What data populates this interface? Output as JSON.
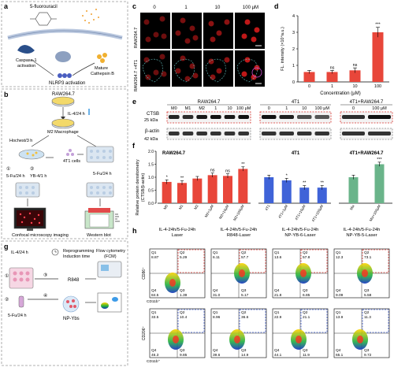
{
  "panels": {
    "a": {
      "letter": "a",
      "drug_label": "5-fluorouracil",
      "caspase_label_1": "Caspase-1",
      "caspase_label_2": "activation",
      "cathepsin_label_1": "Mature",
      "cathepsin_label_2": "Cathepsin B",
      "nlrp3_label": "NLRP3 activation"
    },
    "b": {
      "letter": "b",
      "cell_line": "RAW264.7",
      "il4_label": "IL-4/24 h",
      "m2_label": "M2 Macrophage",
      "hochest_label": "Hochest/3 h",
      "cells_4t1": "4T1 cells",
      "step1": "①",
      "step1_label": "5-Fu/24 h",
      "step2": "②",
      "step2_label": "YB-4/1 h",
      "right_label": "5-Fu/24 h",
      "confocal_label": "Confocal microscopy imaging",
      "western_label": "Western blot"
    },
    "c": {
      "letter": "c",
      "conc_labels": [
        "0",
        "1",
        "10",
        "100 μM"
      ],
      "row_labels": [
        "RAW264.7",
        "RAW264.7 +4T1"
      ]
    },
    "d": {
      "letter": "d",
      "significance": [
        "",
        "ns",
        "ns",
        "***"
      ]
    },
    "e": {
      "letter": "e",
      "group_raw": "RAW264.7",
      "group_4t1": "4T1",
      "group_mix": "4T1+RAW264.7",
      "lane_labels_raw": [
        "M0",
        "M1",
        "M2",
        "1",
        "10",
        "100 μM"
      ],
      "lane_labels_4t1": [
        "0",
        "1",
        "10",
        "100 μM"
      ],
      "lane_labels_mix": [
        "0",
        "100 μM"
      ],
      "ctsb_label": "CTSB",
      "ctsb_kda": "25 kDa",
      "actin_label": "β-actin",
      "actin_kda": "42 kDa"
    },
    "f": {
      "letter": "f",
      "title_raw": "RAW264.7",
      "title_4t1": "4T1",
      "title_mix": "4T1+RAW264.7",
      "ylabel_1": "Relative protein densitometry",
      "ylabel_2": "(CTSB/β-actin)",
      "ytick_labels": [
        "0.0",
        "0.5",
        "1.0",
        "1.5",
        "2.0"
      ]
    },
    "g": {
      "letter": "g",
      "il4_label": "IL-4/24 h",
      "step_a": "①",
      "step_b": "②",
      "fu_label": "5-Fu/24 h",
      "reprog_label_1": "Reprogramming",
      "reprog_label_2": "Induction time",
      "flow_label_1": "Flow cytometry",
      "flow_label_2": "(FCM)",
      "r848_label": "R848",
      "npybs_label": "NP-Ybs",
      "step_c": "③",
      "step_d": "④"
    },
    "h": {
      "letter": "h",
      "col_headers": [
        [
          "IL-4-24h/5-Fu-24h",
          "Laser"
        ],
        [
          "IL-4-24h/5-Fu-24h",
          "R848-Laser"
        ],
        [
          "IL-4-24h/5-Fu-24h",
          "NP-YB-6-Laser"
        ],
        [
          "IL-4-24h/5-Fu-24h",
          "NP-YB-5-Laser"
        ]
      ],
      "row_axis_labels": [
        "CD86⁺",
        "CD206⁺"
      ],
      "x_axis_label": "CD11b⁺",
      "top_quadrants": [
        {
          "q1": "Q1",
          "q1v": "8.87",
          "q2": "Q2",
          "q2v": "5.29",
          "q3": "Q3",
          "q3v": "1.39",
          "q4": "Q4",
          "q4v": "84.5"
        },
        {
          "q1": "Q1",
          "q1v": "6.11",
          "q2": "Q2",
          "q2v": "57.7",
          "q3": "Q3",
          "q3v": "5.17",
          "q4": "Q4",
          "q4v": "31.0"
        },
        {
          "q1": "Q1",
          "q1v": "13.6",
          "q2": "Q2",
          "q2v": "57.8",
          "q3": "Q3",
          "q3v": "6.85",
          "q4": "Q4",
          "q4v": "21.8"
        },
        {
          "q1": "Q1",
          "q1v": "12.3",
          "q2": "Q2",
          "q2v": "73.1",
          "q3": "Q3",
          "q3v": "5.58",
          "q4": "Q4",
          "q4v": "9.09"
        }
      ],
      "bottom_quadrants": [
        {
          "q1": "Q1",
          "q1v": "33.5",
          "q2": "Q2",
          "q2v": "10.4",
          "q3": "Q3",
          "q3v": "9.85",
          "q4": "Q4",
          "q4v": "46.3"
        },
        {
          "q1": "Q1",
          "q1v": "8.96",
          "q2": "Q2",
          "q2v": "36.6",
          "q3": "Q3",
          "q3v": "14.9",
          "q4": "Q4",
          "q4v": "39.6"
        },
        {
          "q1": "Q1",
          "q1v": "22.9",
          "q2": "Q2",
          "q2v": "21.1",
          "q3": "Q3",
          "q3v": "11.9",
          "q4": "Q4",
          "q4v": "44.1"
        },
        {
          "q1": "Q1",
          "q1v": "13.9",
          "q2": "Q2",
          "q2v": "11.3",
          "q3": "Q3",
          "q3v": "9.72",
          "q4": "Q4",
          "q4v": "65.1"
        }
      ]
    }
  },
  "colors": {
    "bar_red": "#e8463a",
    "bar_blue": "#3f63d8",
    "bar_green": "#6ab48a",
    "dash_red": "#d9302b",
    "dash_gray": "#888888",
    "dash_blue": "#3553c9"
  },
  "chart_data": [
    {
      "type": "bar",
      "panel": "d",
      "categories": [
        "0",
        "1",
        "10",
        "100"
      ],
      "values": [
        0.6,
        0.6,
        0.7,
        3.0
      ],
      "errors": [
        0.1,
        0.1,
        0.15,
        0.3
      ],
      "xlabel": "Concentration (μM)",
      "ylabel": "FL. intensity (×10⁴a.u.)",
      "yticks": [
        "0",
        "1",
        "2",
        "3",
        "4"
      ],
      "ylim": [
        0,
        4
      ],
      "significance": [
        "",
        "ns",
        "ns",
        "***"
      ]
    },
    {
      "type": "bar",
      "panel": "f",
      "groups": [
        {
          "name": "RAW264.7",
          "categories": [
            "M0",
            "M1",
            "M2",
            "M2+1μM",
            "M2+10μM",
            "M2+100μM"
          ],
          "values": [
            0.82,
            0.78,
            0.95,
            1.08,
            1.05,
            1.32
          ],
          "significance": [
            "*",
            "**",
            "",
            "ns",
            "ns",
            "**"
          ],
          "color": "#e8463a"
        },
        {
          "name": "4T1",
          "categories": [
            "4T1",
            "4T1+1μM",
            "4T1+10μM",
            "4T1+100μM"
          ],
          "values": [
            1.0,
            0.88,
            0.6,
            0.6
          ],
          "significance": [
            "",
            "*",
            "**",
            "**"
          ],
          "color": "#3f63d8"
        },
        {
          "name": "4T1+RAW264.7",
          "categories": [
            "Mix",
            "Mix+100μM"
          ],
          "values": [
            1.0,
            1.5
          ],
          "significance": [
            "",
            "***"
          ],
          "color": "#6ab48a"
        }
      ],
      "ylabel": "Relative protein densitometry (CTSB/β-actin)",
      "ylim": [
        0,
        2
      ],
      "yticks": [
        "0.0",
        "0.5",
        "1.0",
        "1.5",
        "2.0"
      ]
    }
  ]
}
